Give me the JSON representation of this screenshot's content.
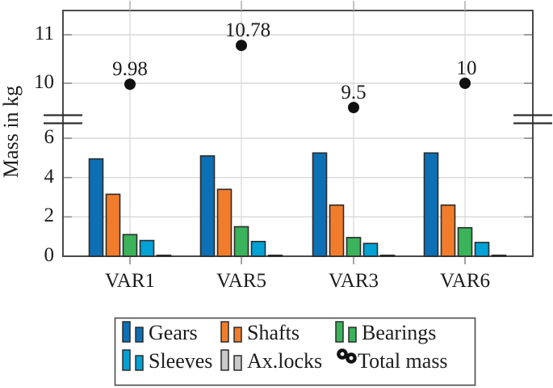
{
  "chart_data": {
    "type": "bar",
    "title": "",
    "ylabel": "Mass in kg",
    "xlabel": "",
    "grid": true,
    "legend_position": "below",
    "categories": [
      "VAR1",
      "VAR5",
      "VAR3",
      "VAR6"
    ],
    "series": [
      {
        "name": "Gears",
        "color": "#0d6fb4",
        "values": [
          4.95,
          5.1,
          5.25,
          5.25
        ]
      },
      {
        "name": "Shafts",
        "color": "#f17d2c",
        "values": [
          3.15,
          3.4,
          2.6,
          2.6
        ]
      },
      {
        "name": "Bearings",
        "color": "#3ab35a",
        "values": [
          1.1,
          1.5,
          0.95,
          1.45
        ]
      },
      {
        "name": "Sleeves",
        "color": "#00a1d4",
        "values": [
          0.8,
          0.75,
          0.65,
          0.7
        ]
      },
      {
        "name": "Ax.locks",
        "color": "#c9c9c9",
        "values": [
          0.05,
          0.05,
          0.05,
          0.05
        ]
      }
    ],
    "scatter_series": {
      "name": "Total mass",
      "color": "#111111",
      "values": [
        9.98,
        10.78,
        9.5,
        10
      ],
      "labels": [
        "9.98",
        "10.78",
        "9.5",
        "10"
      ]
    },
    "y_axis": {
      "lower_ticks": [
        0,
        2,
        4,
        6
      ],
      "upper_ticks": [
        10,
        11
      ],
      "axis_break": true,
      "lower_range": [
        0,
        6.7
      ],
      "upper_range": [
        9.35,
        11.5
      ]
    }
  },
  "legend": {
    "entries": [
      {
        "label": "Gears",
        "type": "bar",
        "color": "#0d6fb4"
      },
      {
        "label": "Shafts",
        "type": "bar",
        "color": "#f17d2c"
      },
      {
        "label": "Bearings",
        "type": "bar",
        "color": "#3ab35a"
      },
      {
        "label": "Sleeves",
        "type": "bar",
        "color": "#00a1d4"
      },
      {
        "label": "Ax.locks",
        "type": "bar",
        "color": "#c9c9c9"
      },
      {
        "label": "Total mass",
        "type": "marker",
        "color": "#111111"
      }
    ]
  },
  "colors": {
    "axis": "#4a4a4a",
    "grid": "#d8d8d8",
    "grid_vertical": "#dcdcdc",
    "bar_edge": "#2b2b2b",
    "tick_inner": "#8c8c8c",
    "tick_top": "#b5b5b5",
    "break_mark": "#2f2f2f",
    "marker": "#111111",
    "text": "#1c1c1c",
    "background": "#ffffff"
  }
}
